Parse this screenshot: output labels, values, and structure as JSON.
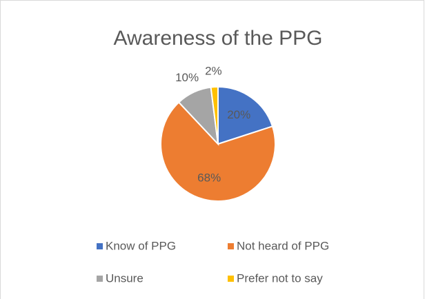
{
  "chart_data": {
    "type": "pie",
    "title": "Awareness of the PPG",
    "categories": [
      "Know of PPG",
      "Not heard of PPG",
      "Unsure",
      "Prefer not to say"
    ],
    "values": [
      20,
      68,
      10,
      2
    ],
    "value_labels": [
      "20%",
      "68%",
      "10%",
      "2%"
    ],
    "colors": [
      "#4472c4",
      "#ed7d31",
      "#a5a5a5",
      "#ffc000"
    ],
    "legend": "bottom"
  }
}
